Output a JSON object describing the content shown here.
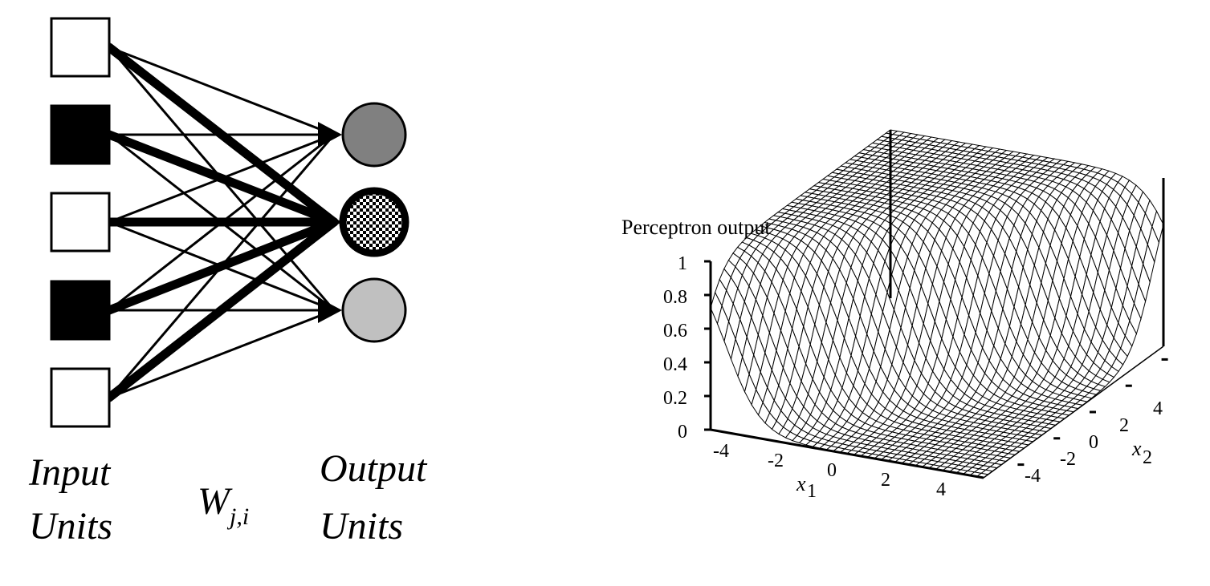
{
  "network": {
    "input_units": [
      {
        "state": "off",
        "fill": "#ffffff"
      },
      {
        "state": "on",
        "fill": "#000000"
      },
      {
        "state": "off",
        "fill": "#ffffff"
      },
      {
        "state": "on",
        "fill": "#000000"
      },
      {
        "state": "off",
        "fill": "#ffffff"
      }
    ],
    "output_units": [
      {
        "fill": "#808080",
        "pattern": "none"
      },
      {
        "fill": "#000000",
        "pattern": "checker"
      },
      {
        "fill": "#c0c0c0",
        "pattern": "none"
      }
    ],
    "emphasized_output_index": 1,
    "labels": {
      "input_line1": "Input",
      "input_line2": "Units",
      "weights_main": "W",
      "weights_sub": "j,i",
      "output_line1": "Output",
      "output_line2": "Units"
    }
  },
  "plot": {
    "z_title": "Perceptron output",
    "z_ticks": [
      "1",
      "0.8",
      "0.6",
      "0.4",
      "0.2",
      "0"
    ],
    "x1_ticks": [
      "-4",
      "-2",
      "0",
      "2",
      "4"
    ],
    "x2_ticks": [
      "-4",
      "-2",
      "0",
      "2",
      "4"
    ],
    "x1_label": "x",
    "x1_sub": "1",
    "x2_label": "x",
    "x2_sub": "2",
    "function": "sigmoid",
    "grid_lines": 40,
    "mesh_color": "#000000",
    "surface_color": "#ffffff"
  }
}
